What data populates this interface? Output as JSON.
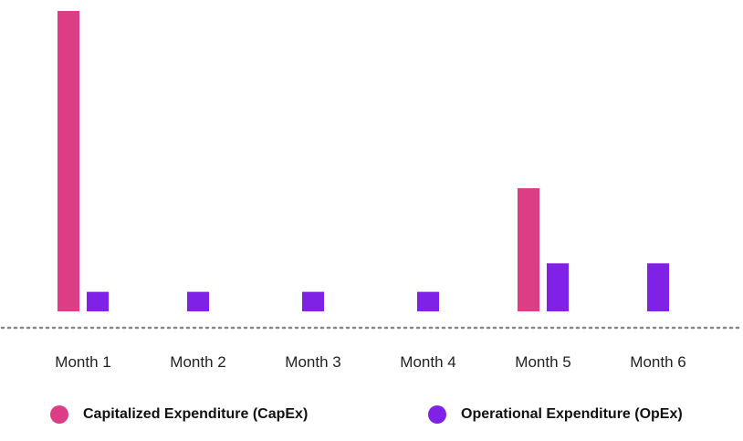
{
  "chart_data": {
    "type": "bar",
    "categories": [
      "Month 1",
      "Month 2",
      "Month 3",
      "Month 4",
      "Month 5",
      "Month 6"
    ],
    "series": [
      {
        "name": "Capitalized Expenditure (CapEx)",
        "color": "#DD3D84",
        "values": [
          100,
          null,
          null,
          null,
          41,
          null
        ]
      },
      {
        "name": "Operational Expenditure (OpEx)",
        "color": "#7F22E6",
        "values": [
          6.5,
          6.5,
          6.5,
          6.5,
          16,
          16
        ]
      }
    ],
    "ylim": [
      0,
      100
    ],
    "grid": false,
    "legend_position": "bottom"
  }
}
